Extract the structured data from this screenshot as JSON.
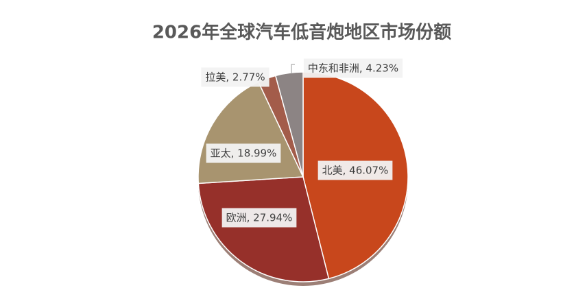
{
  "chart_data": {
    "type": "pie",
    "title": "2026年全球汽车低音炮地区市场份额",
    "categories": [
      "北美",
      "欧洲",
      "亚太",
      "拉美",
      "中东和非洲"
    ],
    "values": [
      46.07,
      27.94,
      18.99,
      2.77,
      4.23
    ],
    "value_labels": [
      "北美, 46.07%",
      "欧洲, 27.94%",
      "亚太, 18.99%",
      "拉美, 2.77%",
      "中东和非洲, 4.23%"
    ],
    "colors": [
      "#c8471c",
      "#96302a",
      "#a8946f",
      "#a35c4a",
      "#8c8484"
    ]
  }
}
